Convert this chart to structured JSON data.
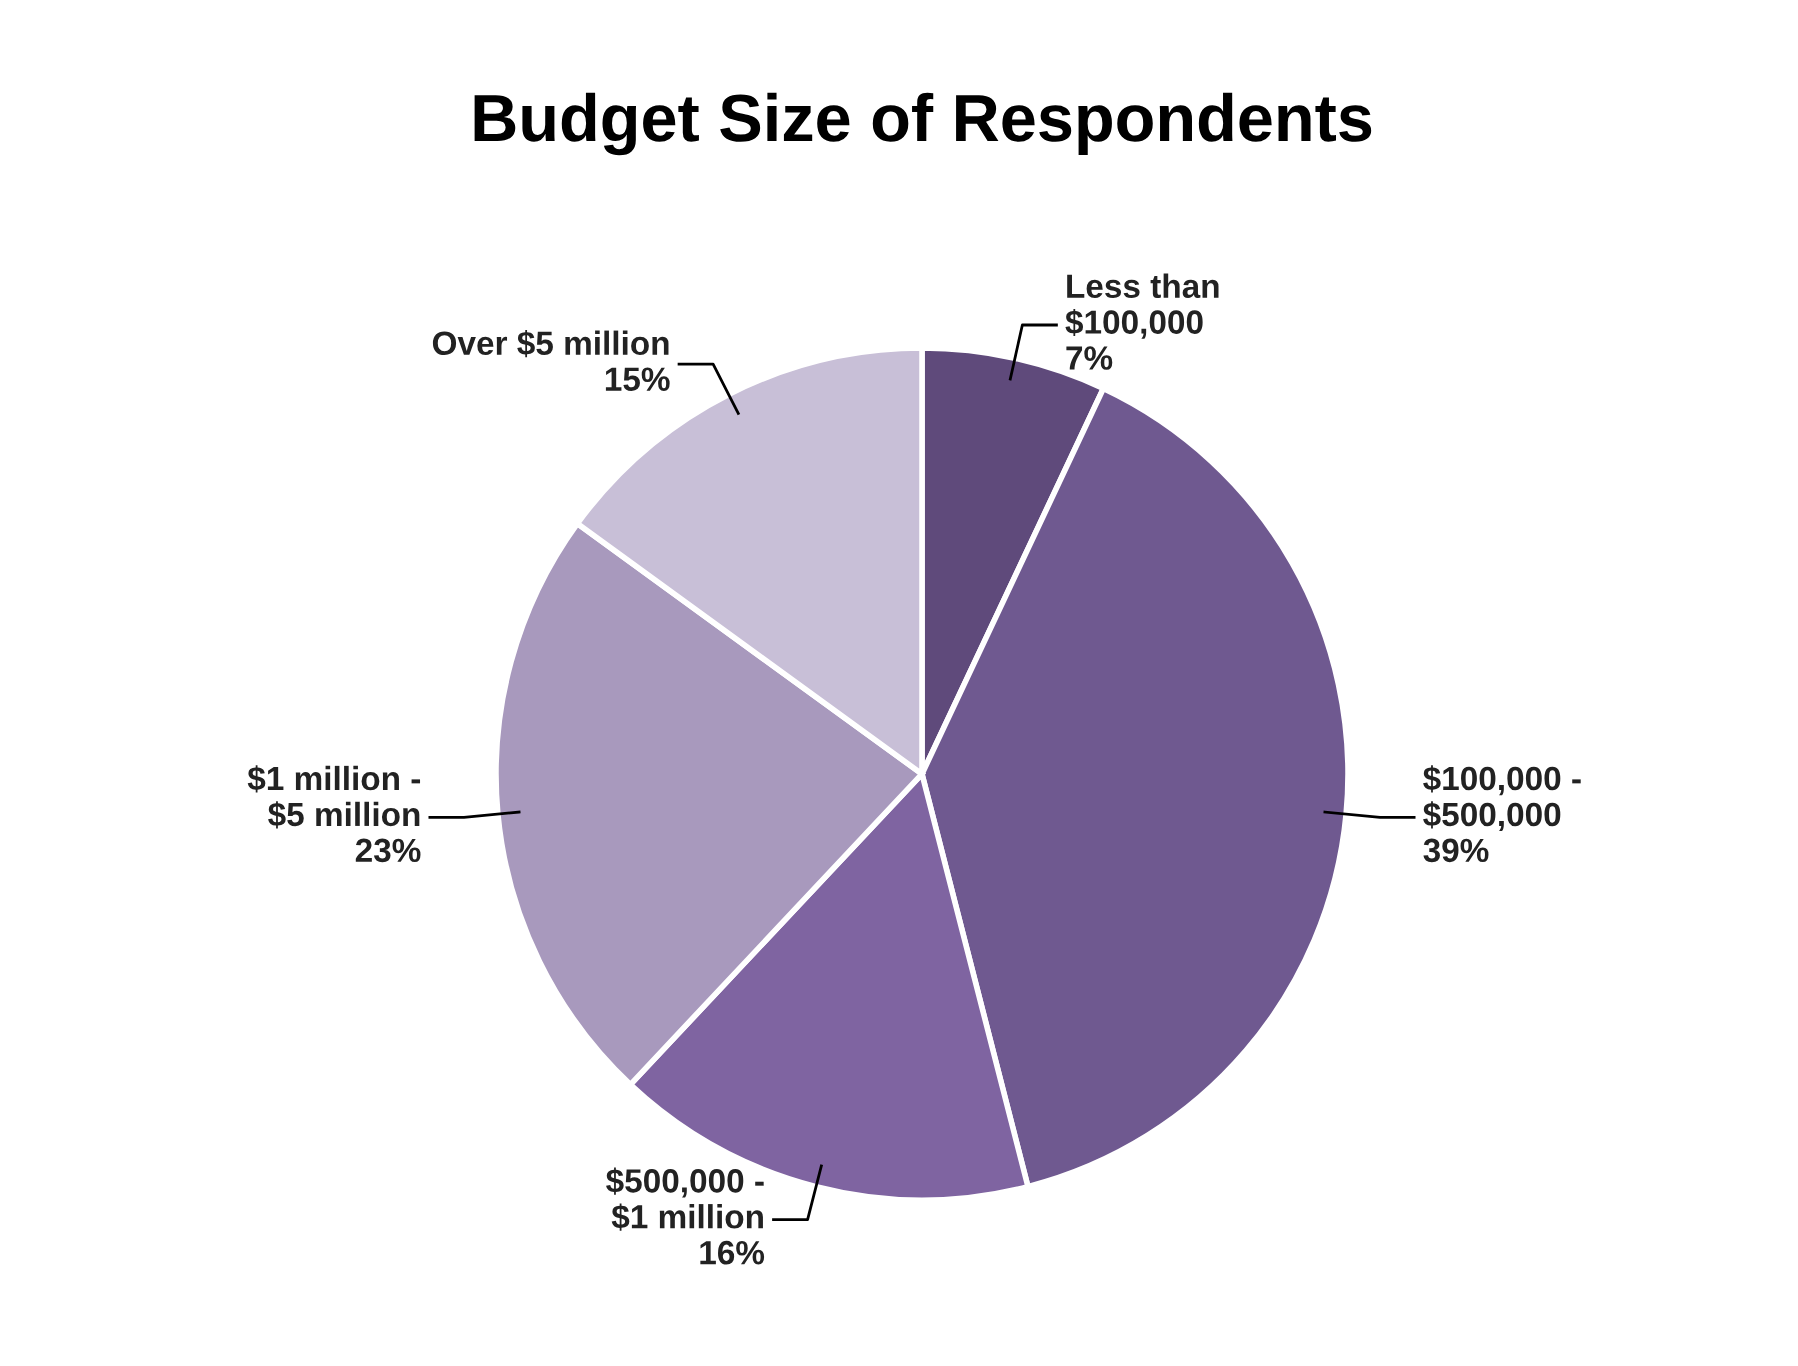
{
  "chart_data": {
    "type": "pie",
    "title": "Budget Size of Respondents",
    "categories": [
      "Less than\n$100,000",
      "$100,000 -\n$500,000",
      "$500,000 -\n$1 million",
      "$1 million -\n$5 million",
      "Over $5 million"
    ],
    "values": [
      7,
      39,
      16,
      23,
      15
    ],
    "value_labels": [
      "7%",
      "39%",
      "16%",
      "23%",
      "15%"
    ],
    "colors": [
      "#5f4a7b",
      "#6f5990",
      "#7f64a1",
      "#a899bd",
      "#c8bfd7"
    ],
    "legend": false
  }
}
